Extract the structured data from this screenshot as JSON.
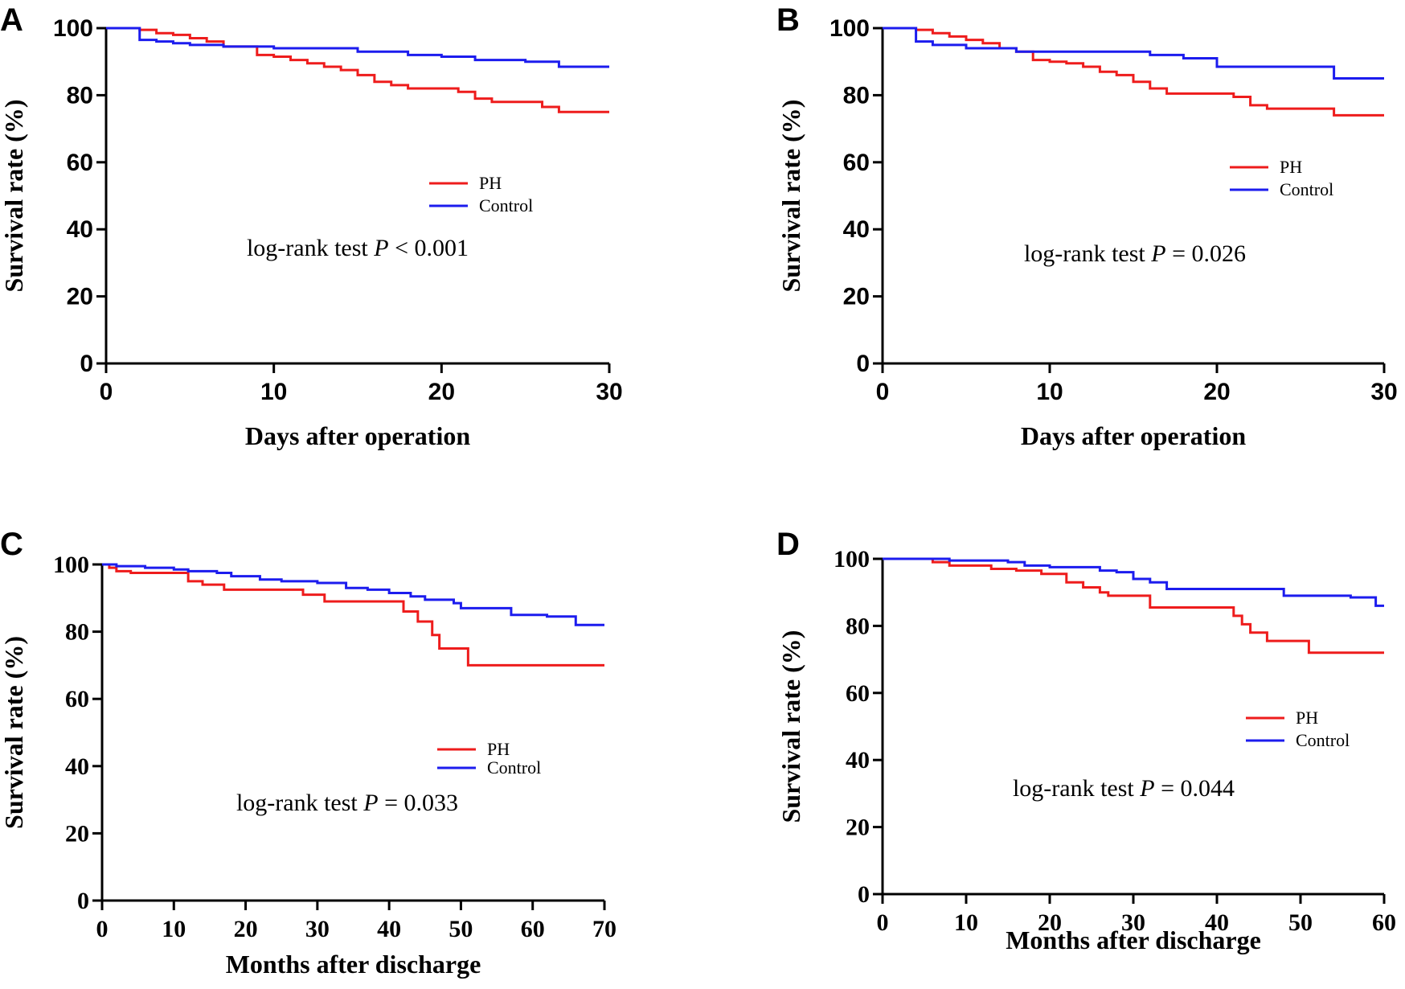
{
  "colors": {
    "PH": "#ee1c1c",
    "Control": "#1c1cee",
    "axis": "#000000"
  },
  "chart_data": [
    {
      "type": "line",
      "panel": "A",
      "xlabel": "Days after operation",
      "ylabel": "Survival rate (%)",
      "xlim": [
        0,
        30
      ],
      "ylim": [
        0,
        100
      ],
      "xticks": [
        0,
        10,
        20,
        30
      ],
      "yticks": [
        0,
        20,
        40,
        60,
        80,
        100
      ],
      "grid": false,
      "legend_position": "center-right",
      "annotation": {
        "prefix": "log-rank  test ",
        "p": "P",
        "value": " < 0.001"
      },
      "series": [
        {
          "name": "PH",
          "x": [
            0,
            2,
            3,
            4,
            5,
            6,
            7,
            9,
            10,
            11,
            12,
            13,
            14,
            15,
            16,
            17,
            18,
            19,
            21,
            22,
            23,
            25,
            26,
            27,
            30
          ],
          "y": [
            100,
            99.5,
            98.5,
            98,
            97,
            96,
            94.5,
            92,
            91.5,
            90.5,
            89.5,
            88.5,
            87.5,
            86,
            84,
            83,
            82,
            82,
            81,
            79,
            78,
            78,
            76.5,
            75,
            75
          ]
        },
        {
          "name": "Control",
          "x": [
            0,
            2,
            3,
            4,
            5,
            7,
            10,
            15,
            18,
            20,
            22,
            25,
            27,
            30
          ],
          "y": [
            100,
            96.5,
            96,
            95.5,
            95,
            94.5,
            94,
            93,
            92,
            91.5,
            90.5,
            90,
            88.5,
            88.5
          ]
        }
      ]
    },
    {
      "type": "line",
      "panel": "B",
      "xlabel": "Days after operation",
      "ylabel": "Survival rate (%)",
      "xlim": [
        0,
        30
      ],
      "ylim": [
        0,
        100
      ],
      "xticks": [
        0,
        10,
        20,
        30
      ],
      "yticks": [
        0,
        20,
        40,
        60,
        80,
        100
      ],
      "grid": false,
      "legend_position": "center-right",
      "annotation": {
        "prefix": "log-rank  test ",
        "p": "P",
        "value": " = 0.026"
      },
      "series": [
        {
          "name": "PH",
          "x": [
            0,
            2,
            3,
            4,
            5,
            6,
            7,
            8,
            9,
            10,
            11,
            12,
            13,
            14,
            15,
            16,
            17,
            20,
            21,
            22,
            23,
            25,
            27,
            30
          ],
          "y": [
            100,
            99.5,
            98.5,
            97.5,
            96.5,
            95.5,
            94,
            93,
            90.5,
            90,
            89.5,
            88.5,
            87,
            86,
            84,
            82,
            80.5,
            80.5,
            79.5,
            77,
            76,
            76,
            74,
            74
          ]
        },
        {
          "name": "Control",
          "x": [
            0,
            2,
            3,
            5,
            8,
            13,
            16,
            18,
            20,
            25,
            27,
            30
          ],
          "y": [
            100,
            96,
            95,
            94,
            93,
            93,
            92,
            91,
            88.5,
            88.5,
            85,
            85
          ]
        }
      ]
    },
    {
      "type": "line",
      "panel": "C",
      "xlabel": "Months after discharge",
      "ylabel": "Survival rate (%)",
      "xlim": [
        0,
        70
      ],
      "ylim": [
        0,
        100
      ],
      "xticks": [
        0,
        10,
        20,
        30,
        40,
        50,
        60,
        70
      ],
      "yticks": [
        0,
        20,
        40,
        60,
        80,
        100
      ],
      "grid": false,
      "legend_position": "center-right",
      "annotation": {
        "prefix": "log-rank  test ",
        "p": "P",
        "value": " = 0.033"
      },
      "series": [
        {
          "name": "PH",
          "x": [
            0,
            1,
            2,
            4,
            12,
            14,
            17,
            28,
            31,
            42,
            44,
            46,
            47,
            51,
            70
          ],
          "y": [
            100,
            99,
            98,
            97.5,
            95,
            94,
            92.5,
            91,
            89,
            86,
            83,
            79,
            75,
            70,
            70
          ]
        },
        {
          "name": "Control",
          "x": [
            0,
            2,
            6,
            10,
            12,
            16,
            18,
            22,
            25,
            30,
            34,
            37,
            40,
            43,
            45,
            49,
            50,
            57,
            62,
            66,
            70
          ],
          "y": [
            100,
            99.5,
            99,
            98.5,
            98,
            97.5,
            96.5,
            95.5,
            95,
            94.5,
            93,
            92.5,
            91.5,
            90.5,
            89.5,
            88.5,
            87,
            85,
            84.5,
            82,
            82
          ]
        }
      ]
    },
    {
      "type": "line",
      "panel": "D",
      "xlabel": "Months after discharge",
      "ylabel": "Survival rate (%)",
      "xlim": [
        0,
        60
      ],
      "ylim": [
        0,
        100
      ],
      "xticks": [
        0,
        10,
        20,
        30,
        40,
        50,
        60
      ],
      "yticks": [
        0,
        20,
        40,
        60,
        80,
        100
      ],
      "grid": false,
      "legend_position": "center-right",
      "annotation": {
        "prefix": "log-rank  test ",
        "p": "P",
        "value": " = 0.044"
      },
      "series": [
        {
          "name": "PH",
          "x": [
            0,
            6,
            8,
            13,
            16,
            19,
            22,
            24,
            26,
            27,
            32,
            37,
            41,
            42,
            43,
            44,
            46,
            51,
            60
          ],
          "y": [
            100,
            99,
            98,
            97,
            96.5,
            95.5,
            93,
            91.5,
            90,
            89,
            85.5,
            85.5,
            85.5,
            83,
            80.5,
            78,
            75.5,
            72,
            72
          ]
        },
        {
          "name": "Control",
          "x": [
            0,
            8,
            15,
            17,
            20,
            24,
            26,
            28,
            30,
            32,
            34,
            40,
            48,
            56,
            59,
            60
          ],
          "y": [
            100,
            99.5,
            99,
            98,
            97.5,
            97.5,
            96.5,
            96,
            94,
            93,
            91,
            91,
            89,
            88.5,
            86,
            86
          ]
        }
      ]
    }
  ]
}
